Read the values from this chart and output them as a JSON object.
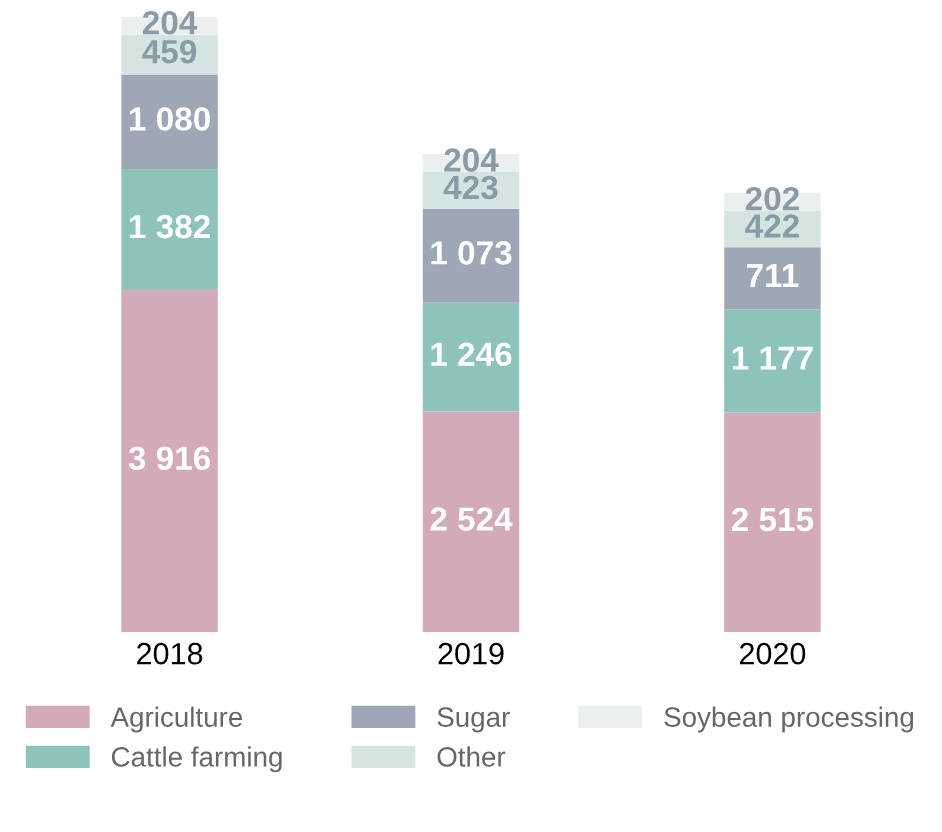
{
  "chart_data": {
    "type": "bar",
    "stacked": true,
    "categories": [
      "2018",
      "2019",
      "2020"
    ],
    "series": [
      {
        "name": "Agriculture",
        "color": "#d3aab9",
        "values": [
          3916,
          2524,
          2515
        ]
      },
      {
        "name": "Cattle farming",
        "color": "#8ec3bb",
        "values": [
          1382,
          1246,
          1177
        ]
      },
      {
        "name": "Sugar",
        "color": "#9ea7b6",
        "values": [
          1080,
          1073,
          711
        ]
      },
      {
        "name": "Other",
        "color": "#d4e4e1",
        "values": [
          459,
          423,
          422
        ]
      },
      {
        "name": "Soybean processing",
        "color": "#eceff0",
        "values": [
          204,
          204,
          202
        ]
      }
    ],
    "data_labels": true,
    "legend": "bottom",
    "tick_labels": "x",
    "grid": false
  }
}
